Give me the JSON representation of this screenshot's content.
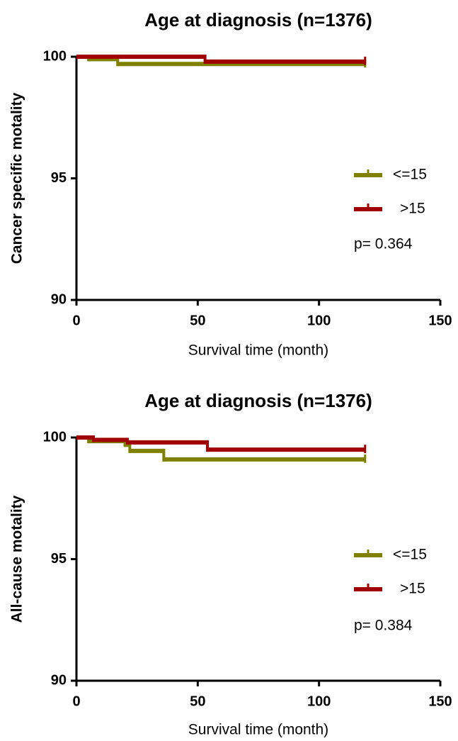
{
  "chart_data": [
    {
      "type": "step",
      "title": "Age at diagnosis (n=1376)",
      "x_label": "Survival time (month)",
      "y_label": "Cancer specific motality",
      "xlim": [
        0,
        150
      ],
      "xticks": [
        0,
        50,
        100,
        150
      ],
      "ylim": [
        90,
        100
      ],
      "yticks": [
        90,
        95,
        100
      ],
      "series": [
        {
          "name": "<=15",
          "color": "#808000",
          "x": [
            0,
            5,
            17,
            119
          ],
          "values": [
            100,
            99.9,
            99.7,
            99.7
          ]
        },
        {
          "name": ">15",
          "color": "#a00000",
          "x": [
            0,
            53,
            119
          ],
          "values": [
            100,
            99.8,
            99.8
          ]
        }
      ],
      "annotation": "p= 0.364"
    },
    {
      "type": "step",
      "title": "Age at diagnosis (n=1376)",
      "x_label": "Survival time (month)",
      "y_label": "All-cause motality",
      "xlim": [
        0,
        150
      ],
      "xticks": [
        0,
        50,
        100,
        150
      ],
      "ylim": [
        90,
        100
      ],
      "yticks": [
        90,
        95,
        100
      ],
      "series": [
        {
          "name": "<=15",
          "color": "#808000",
          "x": [
            0,
            5,
            20,
            22,
            36,
            119
          ],
          "values": [
            100,
            99.85,
            99.7,
            99.45,
            99.1,
            99.1
          ]
        },
        {
          "name": ">15",
          "color": "#a00000",
          "x": [
            0,
            7,
            21,
            54,
            119
          ],
          "values": [
            100,
            99.9,
            99.8,
            99.5,
            99.5
          ]
        }
      ],
      "annotation": "p= 0.384"
    }
  ]
}
